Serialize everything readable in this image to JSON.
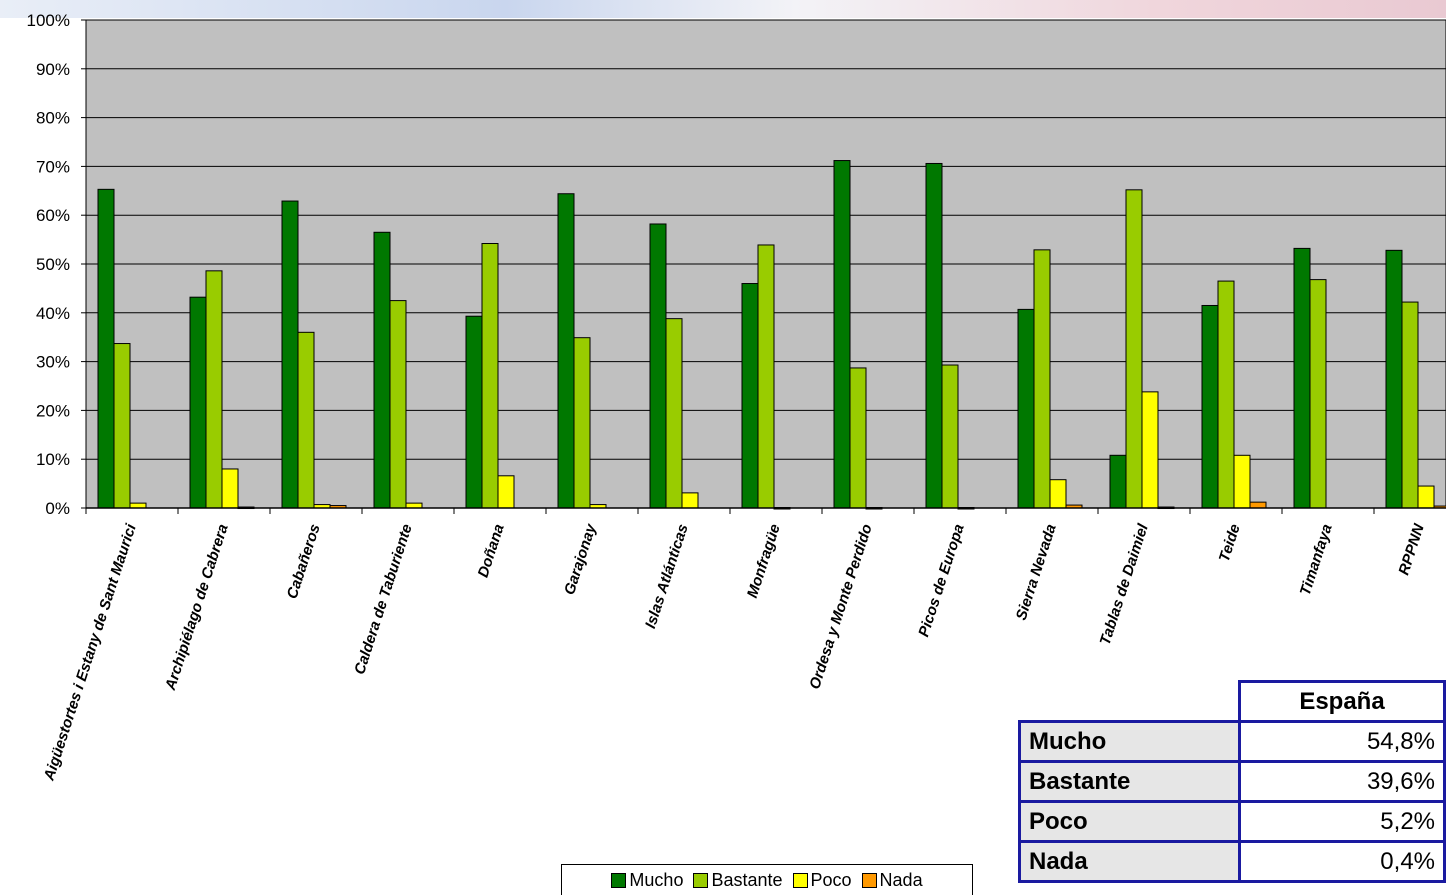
{
  "chart_data": {
    "type": "bar",
    "title": "",
    "xlabel": "",
    "ylabel": "",
    "ylim": [
      0,
      100
    ],
    "y_tick_labels": [
      "0%",
      "10%",
      "20%",
      "30%",
      "40%",
      "50%",
      "60%",
      "70%",
      "80%",
      "90%",
      "100%"
    ],
    "grid": true,
    "legend_position": "bottom",
    "categories": [
      "Aigüestortes i Estany de Sant Maurici",
      "Archipiélago de Cabrera",
      "Cabañeros",
      "Caldera de Taburiente",
      "Doñana",
      "Garajonay",
      "Islas Atlánticas",
      "Monfragüe",
      "Ordesa y Monte Perdido",
      "Picos de Europa",
      "Sierra Nevada",
      "Tablas de Daimiel",
      "Teide",
      "Timanfaya",
      "RPPNN"
    ],
    "series": [
      {
        "name": "Mucho",
        "color": "#007800",
        "values": [
          65.3,
          43.2,
          62.9,
          56.5,
          39.3,
          64.4,
          58.2,
          46.0,
          71.2,
          70.6,
          40.7,
          10.8,
          41.5,
          53.2,
          52.8
        ]
      },
      {
        "name": "Bastante",
        "color": "#99cc00",
        "values": [
          33.7,
          48.6,
          36.0,
          42.5,
          54.2,
          34.9,
          38.8,
          53.9,
          28.7,
          29.3,
          52.9,
          65.2,
          46.5,
          46.8,
          42.2
        ]
      },
      {
        "name": "Poco",
        "color": "#ffff00",
        "values": [
          1.0,
          8.0,
          0.7,
          1.0,
          6.6,
          0.7,
          3.1,
          0.1,
          0.1,
          0.1,
          5.8,
          23.8,
          10.8,
          0.0,
          4.5
        ]
      },
      {
        "name": "Nada",
        "color": "#ff9900",
        "values": [
          0.0,
          0.2,
          0.5,
          0.0,
          0.0,
          0.0,
          0.0,
          0.0,
          0.0,
          0.0,
          0.6,
          0.2,
          1.2,
          0.0,
          0.4
        ]
      }
    ],
    "background": "#c0c0c0"
  },
  "legend": {
    "items": [
      {
        "label": "Mucho",
        "color": "#007800"
      },
      {
        "label": "Bastante",
        "color": "#99cc00"
      },
      {
        "label": "Poco",
        "color": "#ffff00"
      },
      {
        "label": "Nada",
        "color": "#ff9900"
      }
    ]
  },
  "summary_table": {
    "header": "España",
    "rows": [
      {
        "label": "Mucho",
        "value": "54,8%"
      },
      {
        "label": "Bastante",
        "value": "39,6%"
      },
      {
        "label": "Poco",
        "value": "5,2%"
      },
      {
        "label": "Nada",
        "value": "0,4%"
      }
    ]
  }
}
